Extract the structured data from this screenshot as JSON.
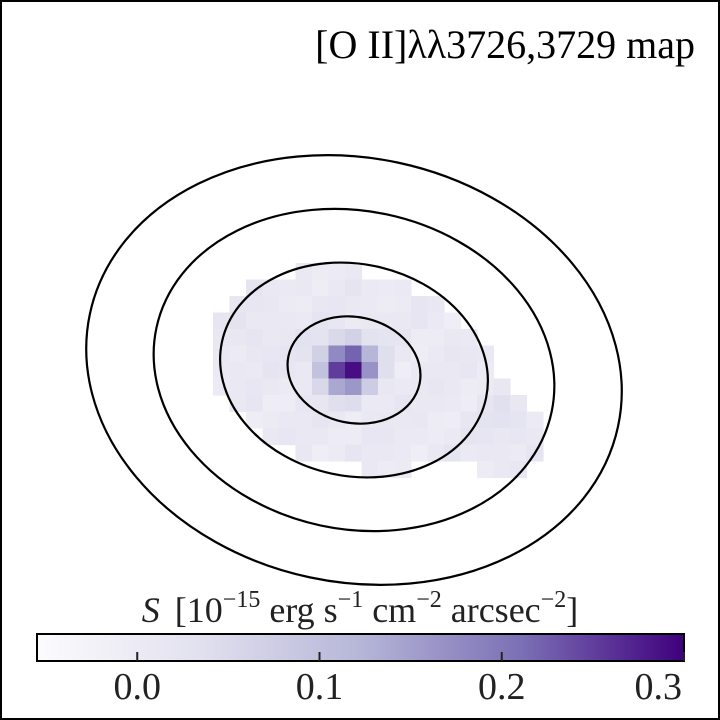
{
  "chart_data": {
    "type": "heatmap",
    "title": "[O II]λλ3726,3729 map",
    "colorbar": {
      "label": {
        "symbol": "S",
        "open": "[10",
        "exp1": "−15",
        "t1": " erg s",
        "exp2": "−1",
        "t2": " cm",
        "exp3": "−2",
        "t3": " arcsec",
        "exp4": "−2",
        "close": "]"
      },
      "vmin": -0.055,
      "vmax": 0.3,
      "ticks": [
        0.0,
        0.1,
        0.2,
        0.3
      ],
      "tick_labels": [
        "0.0",
        "0.1",
        "0.2",
        "0.3"
      ],
      "colormap": "Purples"
    },
    "contours": [
      {
        "level": 1,
        "semi_major": 67,
        "semi_minor": 53
      },
      {
        "level": 2,
        "semi_major": 135,
        "semi_minor": 106
      },
      {
        "level": 3,
        "semi_major": 202,
        "semi_minor": 159
      },
      {
        "level": 4,
        "semi_major": 270,
        "semi_minor": 212
      }
    ],
    "grid": false,
    "axes_visible": false
  },
  "colors": {
    "cmap_low": "#fcfbfd",
    "cmap_mid": "#9e9ac8",
    "cmap_high": "#3f007d",
    "contour": "#000000",
    "frame": "#000000"
  }
}
